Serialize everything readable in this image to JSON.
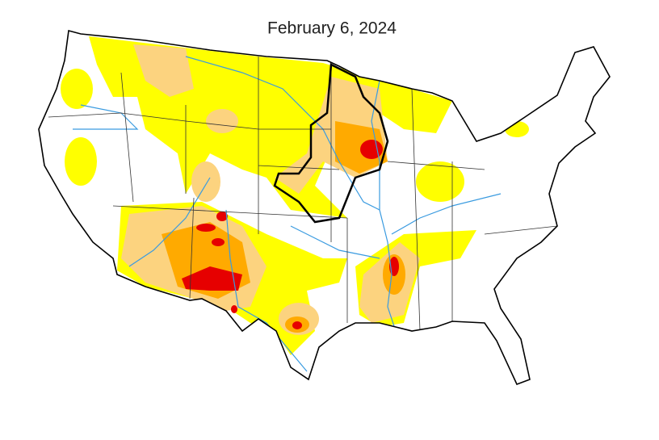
{
  "title": "February 6, 2024"
}
